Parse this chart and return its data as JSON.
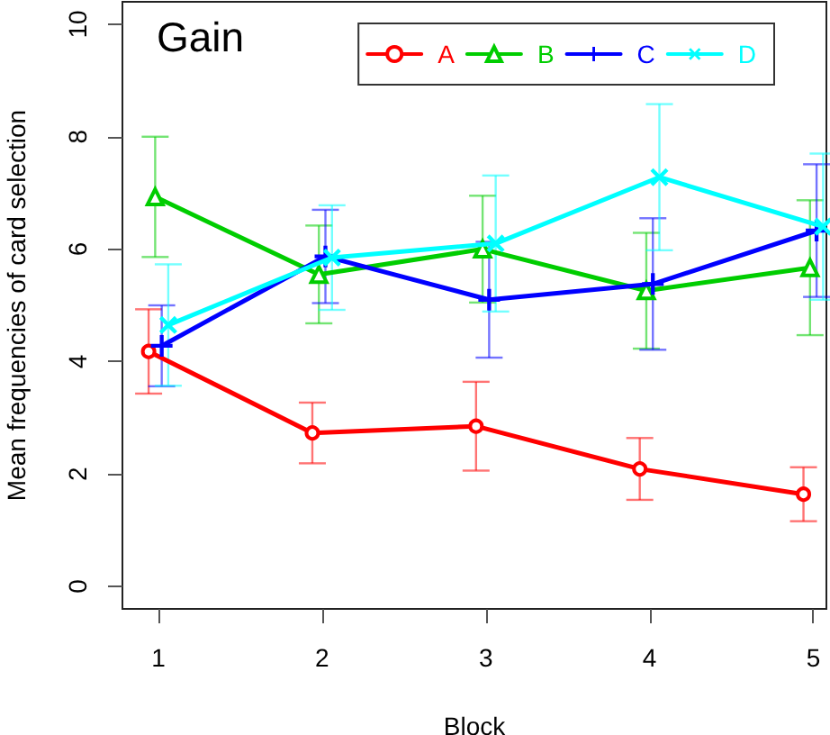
{
  "chart_data": {
    "type": "line",
    "title": "Gain",
    "xlabel": "Block",
    "ylabel": "Mean frequencies of card selection",
    "xlim": [
      0.78,
      5.08
    ],
    "xticks": [
      1,
      2,
      3,
      4,
      5
    ],
    "ylim": [
      -0.4,
      10.4
    ],
    "yticks": [
      0,
      2,
      4,
      6,
      8,
      10
    ],
    "legend": "top right",
    "line_style": "solid",
    "series": [
      {
        "name": "A",
        "color": "#ff0000",
        "marker": "circle",
        "x": [
          0.94,
          1.94,
          2.94,
          3.94,
          4.94
        ],
        "values": [
          4.18,
          2.73,
          2.85,
          2.09,
          1.64
        ],
        "errors": [
          0.75,
          0.54,
          0.79,
          0.55,
          0.48
        ]
      },
      {
        "name": "B",
        "color": "#00cd00",
        "marker": "triangle",
        "x": [
          0.98,
          1.98,
          2.98,
          3.98,
          4.98
        ],
        "values": [
          6.93,
          5.55,
          6.0,
          5.26,
          5.67
        ],
        "errors": [
          1.07,
          0.87,
          0.95,
          1.03,
          1.2
        ]
      },
      {
        "name": "C",
        "color": "#0000ff",
        "marker": "plus",
        "x": [
          1.02,
          2.02,
          3.02,
          4.02,
          5.02
        ],
        "values": [
          4.28,
          5.87,
          5.1,
          5.38,
          6.33
        ],
        "errors": [
          0.72,
          0.83,
          1.03,
          1.17,
          1.18
        ]
      },
      {
        "name": "D",
        "color": "#00ffff",
        "marker": "cross",
        "x": [
          1.06,
          2.06,
          3.06,
          4.06,
          5.06
        ],
        "values": [
          4.65,
          5.85,
          6.1,
          7.28,
          6.4
        ],
        "errors": [
          1.08,
          0.93,
          1.21,
          1.3,
          1.3
        ]
      }
    ]
  }
}
